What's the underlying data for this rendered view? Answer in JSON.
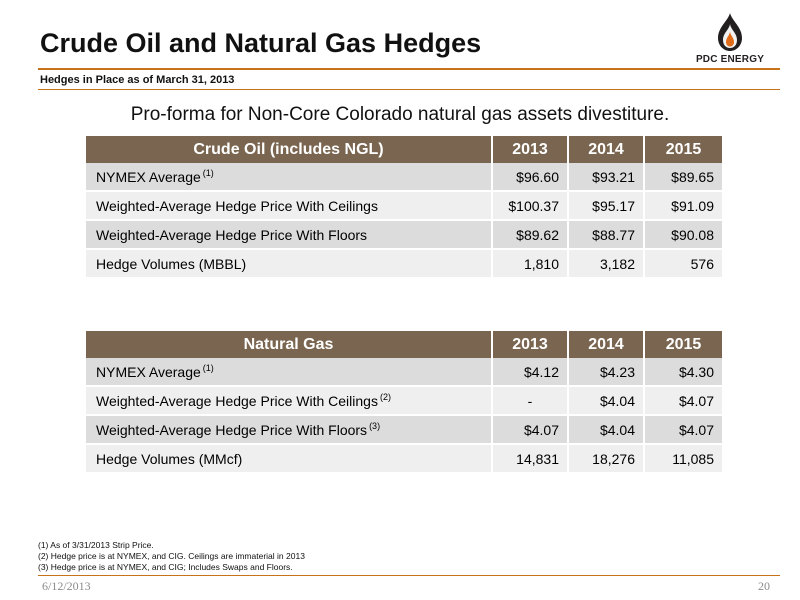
{
  "header": {
    "title": "Crude Oil and Natural Gas Hedges",
    "subtitle": "Hedges in Place as of March 31, 2013",
    "logo_text": "PDC ENERGY"
  },
  "tagline": "Pro-forma for Non-Core Colorado natural gas assets divestiture.",
  "oil_table": {
    "headers": [
      "Crude Oil (includes NGL)",
      "2013",
      "2014",
      "2015"
    ],
    "rows": [
      {
        "label": "NYMEX Average",
        "note": "(1)",
        "values": [
          "$96.60",
          "$93.21",
          "$89.65"
        ]
      },
      {
        "label": "Weighted-Average Hedge Price With Ceilings",
        "note": "",
        "values": [
          "$100.37",
          "$95.17",
          "$91.09"
        ]
      },
      {
        "label": "Weighted-Average Hedge Price With Floors",
        "note": "",
        "values": [
          "$89.62",
          "$88.77",
          "$90.08"
        ]
      },
      {
        "label": "Hedge Volumes (MBBL)",
        "note": "",
        "values": [
          "1,810",
          "3,182",
          "576"
        ]
      }
    ]
  },
  "gas_table": {
    "headers": [
      "Natural Gas",
      "2013",
      "2014",
      "2015"
    ],
    "rows": [
      {
        "label": "NYMEX Average",
        "note": "(1)",
        "values": [
          "$4.12",
          "$4.23",
          "$4.30"
        ]
      },
      {
        "label": "Weighted-Average Hedge Price With Ceilings",
        "note": "(2)",
        "values": [
          "-",
          "$4.04",
          "$4.07"
        ]
      },
      {
        "label": "Weighted-Average Hedge Price With Floors",
        "note": "(3)",
        "values": [
          "$4.07",
          "$4.04",
          "$4.07"
        ]
      },
      {
        "label": "Hedge Volumes (MMcf)",
        "note": "",
        "values": [
          "14,831",
          "18,276",
          "11,085"
        ]
      }
    ]
  },
  "footnotes": [
    "(1) As of 3/31/2013 Strip Price.",
    "(2) Hedge price is at NYMEX, and CIG. Ceilings are immaterial in 2013",
    "(3) Hedge price is at NYMEX, and CIG; Includes Swaps and Floors."
  ],
  "footer": {
    "date": "6/12/2013",
    "page": "20"
  },
  "colors": {
    "accent": "#c8711b",
    "table_header": "#7a6650"
  }
}
